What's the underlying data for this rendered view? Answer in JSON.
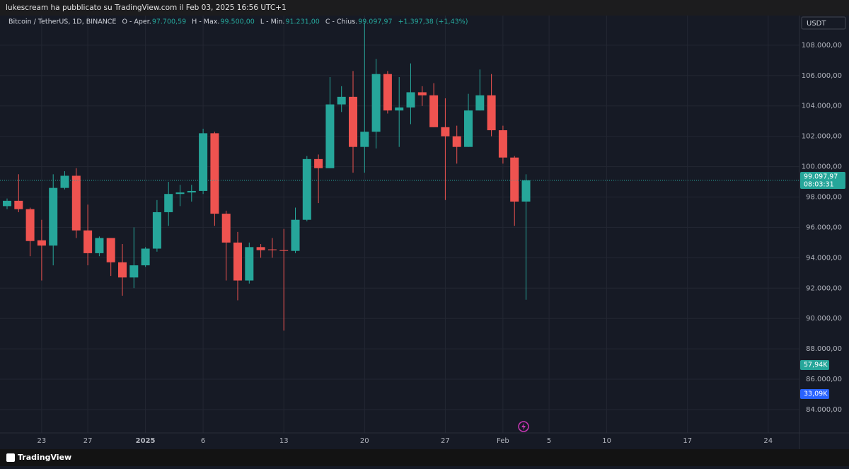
{
  "header": {
    "published": "lukescream ha pubblicato su TradingView.com il Feb 03, 2025 16:56 UTC+1",
    "symbol": "Bitcoin / TetherUS, 1D, BINANCE",
    "legend": [
      {
        "label": "O - Aper.",
        "value": "97.700,59"
      },
      {
        "label": "H - Max.",
        "value": "99.500,00"
      },
      {
        "label": "L - Min.",
        "value": "91.231,00"
      },
      {
        "label": "C - Chius.",
        "value": "99.097,97"
      }
    ],
    "change": "+1.397,38 (+1,43%)"
  },
  "chart_data": {
    "type": "candlestick",
    "currency": "USDT",
    "categories": [
      null,
      null,
      null,
      "23",
      null,
      null,
      null,
      "27",
      null,
      null,
      null,
      null,
      "2025",
      null,
      null,
      null,
      null,
      "6",
      null,
      null,
      null,
      null,
      null,
      null,
      "13",
      null,
      null,
      null,
      null,
      null,
      null,
      "20",
      null,
      null,
      null,
      null,
      null,
      null,
      "27",
      null,
      null,
      null,
      null,
      "Feb",
      null,
      null,
      null,
      "5",
      null,
      null,
      null,
      null,
      "10",
      null,
      null,
      null,
      null,
      null,
      null,
      "17",
      null,
      null,
      null,
      null,
      null,
      null,
      "24",
      null,
      null
    ],
    "open": [
      97400,
      97750,
      97200,
      95150,
      94800,
      98600,
      99400,
      95800,
      94300,
      95300,
      93700,
      92700,
      93500,
      94600,
      97000,
      98200,
      98300,
      98400,
      102200,
      96900,
      95000,
      92500,
      94700,
      94550,
      94500,
      94450,
      96500,
      100500,
      99900,
      104100,
      104600,
      101300,
      102300,
      106100,
      103700,
      103900,
      104900,
      104700,
      102600,
      102000,
      101300,
      103700,
      104700,
      102400,
      100600,
      97700.59,
      null,
      null,
      null,
      null,
      null,
      null,
      null,
      null,
      null,
      null,
      null,
      null,
      null,
      null,
      null,
      null,
      null,
      null,
      null,
      null,
      null,
      null,
      null
    ],
    "high": [
      97900,
      99500,
      97300,
      96500,
      99500,
      99700,
      99900,
      97500,
      95400,
      95300,
      94900,
      96000,
      94700,
      97800,
      99000,
      98800,
      98800,
      102500,
      102300,
      97100,
      95700,
      95000,
      94900,
      95300,
      95900,
      97300,
      100700,
      100800,
      105900,
      105300,
      106300,
      109500,
      107100,
      106300,
      105900,
      106800,
      105300,
      105500,
      104500,
      102700,
      104800,
      106400,
      106100,
      102700,
      100700,
      99500,
      null,
      null,
      null,
      null,
      null,
      null,
      null,
      null,
      null,
      null,
      null,
      null,
      null,
      null,
      null,
      null,
      null,
      null,
      null,
      null,
      null,
      null,
      null
    ],
    "low": [
      97200,
      97000,
      94100,
      92500,
      93500,
      98500,
      95300,
      93500,
      94100,
      92800,
      91500,
      92000,
      93400,
      94400,
      96100,
      97400,
      97700,
      98200,
      96100,
      92500,
      91200,
      92300,
      94000,
      94000,
      89200,
      94300,
      96400,
      97600,
      99900,
      103600,
      99600,
      99600,
      101200,
      103500,
      101300,
      102800,
      104000,
      102600,
      97800,
      100200,
      101300,
      103700,
      102000,
      100200,
      96100,
      91231,
      null,
      null,
      null,
      null,
      null,
      null,
      null,
      null,
      null,
      null,
      null,
      null,
      null,
      null,
      null,
      null,
      null,
      null,
      null,
      null,
      null,
      null,
      null
    ],
    "close": [
      97750,
      97200,
      95100,
      94800,
      98600,
      99400,
      95800,
      94300,
      95300,
      93700,
      92700,
      93500,
      94600,
      97000,
      98200,
      98300,
      98400,
      102200,
      96900,
      95000,
      92500,
      94700,
      94500,
      94500,
      94450,
      96500,
      100500,
      99900,
      104100,
      104600,
      101300,
      102300,
      106100,
      103700,
      103900,
      104900,
      104700,
      102600,
      102000,
      101300,
      103700,
      104700,
      102400,
      100600,
      97700,
      99097.97,
      null,
      null,
      null,
      null,
      null,
      null,
      null,
      null,
      null,
      null,
      null,
      null,
      null,
      null,
      null,
      null,
      null,
      null,
      null,
      null,
      null,
      null,
      null
    ],
    "up_color": "#26a69a",
    "down_color": "#ef5350",
    "ylim": [
      82460,
      109580
    ],
    "yticks": [
      {
        "value": 84000,
        "label": "84.000,00"
      },
      {
        "value": 86000,
        "label": "86.000,00"
      },
      {
        "value": 88000,
        "label": "88.000,00"
      },
      {
        "value": 90000,
        "label": "90.000,00"
      },
      {
        "value": 92000,
        "label": "92.000,00"
      },
      {
        "value": 94000,
        "label": "94.000,00"
      },
      {
        "value": 96000,
        "label": "96.000,00"
      },
      {
        "value": 98000,
        "label": "98.000,00"
      },
      {
        "value": 100000,
        "label": "100.000,00"
      },
      {
        "value": 102000,
        "label": "102.000,00"
      },
      {
        "value": 104000,
        "label": "104.000,00"
      },
      {
        "value": 106000,
        "label": "106.000,00"
      },
      {
        "value": 108000,
        "label": "108.000,00"
      }
    ],
    "grid": true,
    "last_price_label": "99.097,97",
    "countdown": "08:03:31",
    "volume_labels": [
      {
        "text": "57,94K",
        "color": "#26a69a"
      },
      {
        "text": "33,09K",
        "color": "#2962ff"
      }
    ]
  },
  "footer": {
    "brand": "TradingView"
  }
}
